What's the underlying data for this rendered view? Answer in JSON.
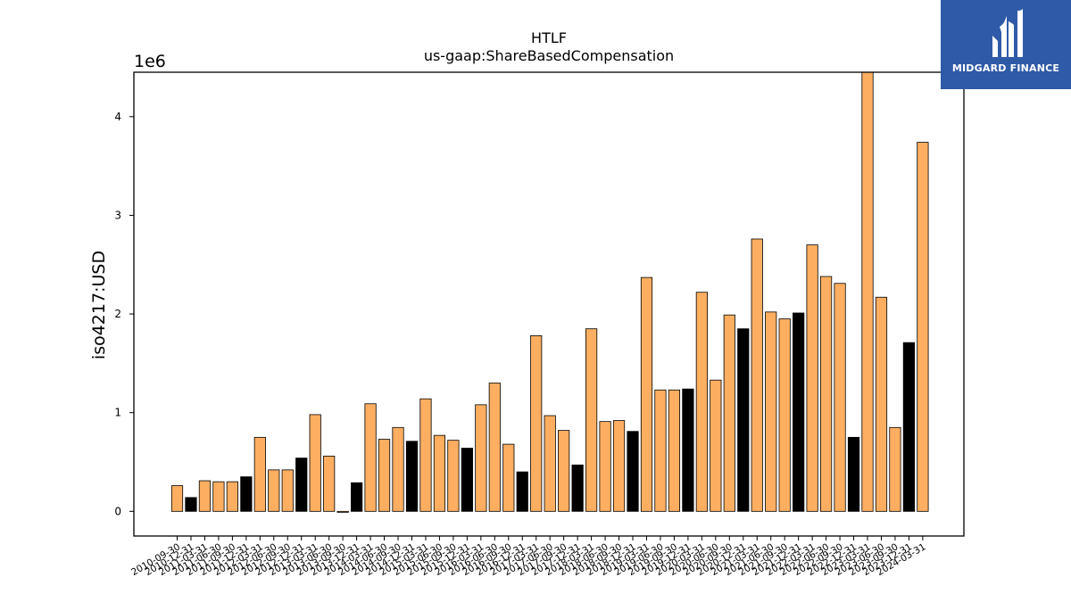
{
  "chart_data": {
    "type": "bar",
    "title": "HTLF",
    "subtitle": "us-gaap:ShareBasedCompensation",
    "xlabel": "",
    "ylabel": "iso4217:USD",
    "y_offset_label": "1e6",
    "ylim": [
      -0.25,
      4.45
    ],
    "yticks": [
      "0",
      "1",
      "2",
      "3",
      "4"
    ],
    "grid": false,
    "legend": "none",
    "colors": {
      "quarterly": "#fdae61",
      "annual": "#000000"
    },
    "bars": [
      {
        "label": "2010-09-30",
        "value": 0.26,
        "kind": "quarterly"
      },
      {
        "label": "2010-12-31",
        "value": 0.14,
        "kind": "annual"
      },
      {
        "label": "2011-03-31",
        "value": 0.31,
        "kind": "quarterly"
      },
      {
        "label": "2011-06-30",
        "value": 0.3,
        "kind": "quarterly"
      },
      {
        "label": "2011-09-30",
        "value": 0.3,
        "kind": "quarterly"
      },
      {
        "label": "2011-12-31",
        "value": 0.35,
        "kind": "annual"
      },
      {
        "label": "2012-03-31",
        "value": 0.75,
        "kind": "quarterly"
      },
      {
        "label": "2012-06-30",
        "value": 0.42,
        "kind": "quarterly"
      },
      {
        "label": "2012-09-30",
        "value": 0.42,
        "kind": "quarterly"
      },
      {
        "label": "2012-12-31",
        "value": 0.54,
        "kind": "annual"
      },
      {
        "label": "2013-03-31",
        "value": 0.98,
        "kind": "quarterly"
      },
      {
        "label": "2013-06-30",
        "value": 0.56,
        "kind": "quarterly"
      },
      {
        "label": "2013-09-30",
        "value": -0.01,
        "kind": "quarterly"
      },
      {
        "label": "2013-12-31",
        "value": 0.29,
        "kind": "annual"
      },
      {
        "label": "2014-03-31",
        "value": 1.09,
        "kind": "quarterly"
      },
      {
        "label": "2014-06-30",
        "value": 0.73,
        "kind": "quarterly"
      },
      {
        "label": "2014-09-30",
        "value": 0.85,
        "kind": "quarterly"
      },
      {
        "label": "2014-12-31",
        "value": 0.71,
        "kind": "annual"
      },
      {
        "label": "2015-03-31",
        "value": 1.14,
        "kind": "quarterly"
      },
      {
        "label": "2015-06-30",
        "value": 0.77,
        "kind": "quarterly"
      },
      {
        "label": "2015-09-30",
        "value": 0.72,
        "kind": "quarterly"
      },
      {
        "label": "2015-12-31",
        "value": 0.64,
        "kind": "annual"
      },
      {
        "label": "2016-03-31",
        "value": 1.08,
        "kind": "quarterly"
      },
      {
        "label": "2016-06-30",
        "value": 1.3,
        "kind": "quarterly"
      },
      {
        "label": "2016-09-30",
        "value": 0.68,
        "kind": "quarterly"
      },
      {
        "label": "2016-12-31",
        "value": 0.4,
        "kind": "annual"
      },
      {
        "label": "2017-03-31",
        "value": 1.78,
        "kind": "quarterly"
      },
      {
        "label": "2017-06-30",
        "value": 0.97,
        "kind": "quarterly"
      },
      {
        "label": "2017-09-30",
        "value": 0.82,
        "kind": "quarterly"
      },
      {
        "label": "2017-12-31",
        "value": 0.47,
        "kind": "annual"
      },
      {
        "label": "2018-03-31",
        "value": 1.85,
        "kind": "quarterly"
      },
      {
        "label": "2018-06-30",
        "value": 0.91,
        "kind": "quarterly"
      },
      {
        "label": "2018-09-30",
        "value": 0.92,
        "kind": "quarterly"
      },
      {
        "label": "2018-12-31",
        "value": 0.81,
        "kind": "annual"
      },
      {
        "label": "2019-03-31",
        "value": 2.37,
        "kind": "quarterly"
      },
      {
        "label": "2019-06-30",
        "value": 1.23,
        "kind": "quarterly"
      },
      {
        "label": "2019-09-30",
        "value": 1.23,
        "kind": "quarterly"
      },
      {
        "label": "2019-12-31",
        "value": 1.24,
        "kind": "annual"
      },
      {
        "label": "2020-03-31",
        "value": 2.22,
        "kind": "quarterly"
      },
      {
        "label": "2020-06-30",
        "value": 1.33,
        "kind": "quarterly"
      },
      {
        "label": "2020-09-30",
        "value": 1.99,
        "kind": "quarterly"
      },
      {
        "label": "2020-12-31",
        "value": 1.85,
        "kind": "annual"
      },
      {
        "label": "2021-03-31",
        "value": 2.76,
        "kind": "quarterly"
      },
      {
        "label": "2021-06-30",
        "value": 2.02,
        "kind": "quarterly"
      },
      {
        "label": "2021-09-30",
        "value": 1.95,
        "kind": "quarterly"
      },
      {
        "label": "2021-12-31",
        "value": 2.01,
        "kind": "annual"
      },
      {
        "label": "2022-03-31",
        "value": 2.7,
        "kind": "quarterly"
      },
      {
        "label": "2022-06-30",
        "value": 2.38,
        "kind": "quarterly"
      },
      {
        "label": "2022-09-30",
        "value": 2.31,
        "kind": "quarterly"
      },
      {
        "label": "2022-12-31",
        "value": 0.75,
        "kind": "annual"
      },
      {
        "label": "2023-03-31",
        "value": 4.5,
        "kind": "quarterly"
      },
      {
        "label": "2023-06-30",
        "value": 2.17,
        "kind": "quarterly"
      },
      {
        "label": "2023-09-30",
        "value": 0.85,
        "kind": "quarterly"
      },
      {
        "label": "2023-12-31",
        "value": 1.71,
        "kind": "annual"
      },
      {
        "label": "2024-03-31",
        "value": 3.74,
        "kind": "quarterly"
      }
    ]
  },
  "logo": {
    "text": "MIDGARD FINANCE",
    "icon": "midgard-logo-icon"
  }
}
